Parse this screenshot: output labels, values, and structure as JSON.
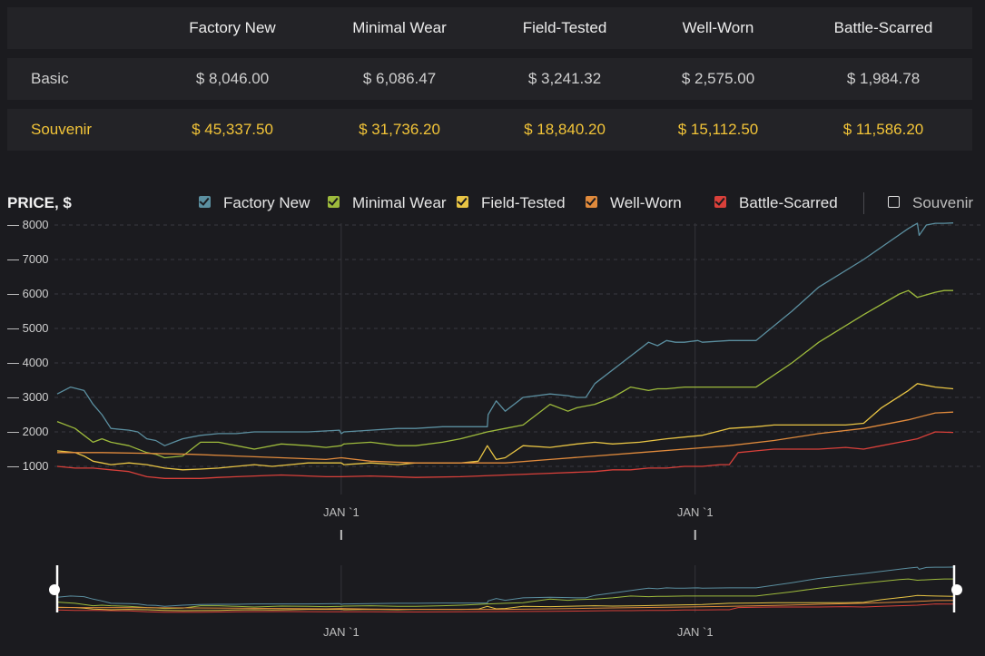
{
  "table": {
    "columns": [
      "",
      "Factory New",
      "Minimal Wear",
      "Field-Tested",
      "Well-Worn",
      "Battle-Scarred"
    ],
    "rows": [
      {
        "name": "Basic",
        "values": [
          "$ 8,046.00",
          "$ 6,086.47",
          "$ 3,241.32",
          "$ 2,575.00",
          "$ 1,984.78"
        ]
      },
      {
        "name": "Souvenir",
        "values": [
          "$ 45,337.50",
          "$ 31,736.20",
          "$ 18,840.20",
          "$ 15,112.50",
          "$ 11,586.20"
        ]
      }
    ]
  },
  "colors": {
    "factory_new": "#5b8fa0",
    "minimal_wear": "#9dba3c",
    "field_tested": "#e8c444",
    "well_worn": "#e08a3c",
    "battle_scarred": "#d9403a",
    "souvenir_text": "#f2c438"
  },
  "legend": {
    "items": [
      {
        "label": "Factory New",
        "checked": true
      },
      {
        "label": "Minimal Wear",
        "checked": true
      },
      {
        "label": "Field-Tested",
        "checked": true
      },
      {
        "label": "Well-Worn",
        "checked": true
      },
      {
        "label": "Battle-Scarred",
        "checked": true
      },
      {
        "label": "Souvenir",
        "checked": false
      }
    ]
  },
  "chart_data": {
    "type": "line",
    "ylabel": "PRICE, $",
    "ylim": [
      0,
      8000
    ],
    "yticks": [
      1000,
      2000,
      3000,
      4000,
      5000,
      6000,
      7000,
      8000
    ],
    "ytick_labels": [
      "— 1000",
      "— 2000",
      "— 3000",
      "— 4000",
      "— 5000",
      "— 6000",
      "— 7000",
      "— 8000"
    ],
    "xlim": [
      0,
      100
    ],
    "xtick_positions": [
      31.7,
      71.2
    ],
    "xtick_labels": [
      "JAN `1",
      "JAN `1"
    ],
    "grid": true,
    "legend_position": "top",
    "series": [
      {
        "name": "Factory New",
        "x": [
          0,
          1.5,
          3,
          4,
          5,
          6,
          8,
          9,
          10,
          11,
          12,
          13,
          14,
          15,
          16,
          18,
          20,
          22,
          25,
          28,
          31.5,
          31.7,
          32,
          35,
          38,
          40,
          43,
          45,
          46,
          48,
          48.1,
          49,
          50,
          52,
          55,
          57,
          58,
          59,
          60,
          61,
          63,
          64,
          65,
          66,
          67,
          68,
          69,
          70,
          71.5,
          72,
          75,
          78,
          82,
          85,
          90,
          95,
          96,
          96.2,
          97,
          98,
          99,
          100
        ],
        "y": [
          3100,
          3300,
          3200,
          2800,
          2500,
          2100,
          2050,
          2000,
          1800,
          1750,
          1600,
          1700,
          1800,
          1850,
          1900,
          1950,
          1950,
          2000,
          2000,
          2000,
          2050,
          1950,
          2000,
          2050,
          2100,
          2100,
          2150,
          2150,
          2150,
          2150,
          2500,
          2900,
          2600,
          3000,
          3100,
          3050,
          3000,
          3000,
          3400,
          3600,
          4000,
          4200,
          4400,
          4600,
          4500,
          4650,
          4600,
          4600,
          4650,
          4600,
          4650,
          4650,
          5500,
          6200,
          7000,
          7900,
          8050,
          7700,
          8000,
          8050,
          8050,
          8060
        ]
      },
      {
        "name": "Minimal Wear",
        "x": [
          0,
          2,
          3,
          4,
          5,
          6,
          8,
          10,
          11,
          12,
          14,
          16,
          18,
          20,
          22,
          25,
          28,
          30,
          31.7,
          32,
          35,
          38,
          40,
          43,
          45,
          48,
          50,
          52,
          55,
          57,
          58,
          60,
          62,
          64,
          66,
          67,
          68,
          70,
          72,
          75,
          78,
          82,
          85,
          90,
          94,
          95,
          96,
          98,
          99,
          100
        ],
        "y": [
          2300,
          2100,
          1900,
          1700,
          1800,
          1700,
          1600,
          1400,
          1350,
          1250,
          1300,
          1700,
          1700,
          1600,
          1500,
          1650,
          1600,
          1550,
          1600,
          1650,
          1700,
          1600,
          1600,
          1700,
          1800,
          2000,
          2100,
          2200,
          2800,
          2600,
          2700,
          2800,
          3000,
          3300,
          3200,
          3250,
          3250,
          3300,
          3300,
          3300,
          3300,
          4000,
          4600,
          5400,
          6000,
          6100,
          5900,
          6050,
          6100,
          6100
        ]
      },
      {
        "name": "Field-Tested",
        "x": [
          0,
          2,
          3,
          4,
          5,
          6,
          8,
          10,
          12,
          14,
          16,
          18,
          20,
          22,
          24,
          26,
          28,
          30,
          31.7,
          32,
          35,
          38,
          40,
          43,
          45,
          47,
          48,
          49,
          50,
          52,
          55,
          58,
          60,
          62,
          65,
          68,
          70,
          72,
          75,
          78,
          80,
          82,
          85,
          88,
          90,
          92,
          95,
          96,
          97,
          98,
          100
        ],
        "y": [
          1450,
          1400,
          1300,
          1150,
          1100,
          1050,
          1100,
          1050,
          950,
          900,
          920,
          950,
          1000,
          1050,
          1000,
          1050,
          1100,
          1100,
          1100,
          1050,
          1100,
          1050,
          1100,
          1100,
          1100,
          1150,
          1600,
          1200,
          1250,
          1600,
          1550,
          1650,
          1700,
          1650,
          1700,
          1800,
          1850,
          1900,
          2100,
          2150,
          2200,
          2200,
          2200,
          2200,
          2250,
          2700,
          3200,
          3400,
          3350,
          3300,
          3250
        ]
      },
      {
        "name": "Well-Worn",
        "x": [
          0,
          5,
          10,
          15,
          20,
          25,
          30,
          31.7,
          35,
          40,
          45,
          50,
          55,
          60,
          65,
          70,
          75,
          80,
          85,
          90,
          95,
          98,
          100
        ],
        "y": [
          1400,
          1400,
          1380,
          1350,
          1300,
          1250,
          1200,
          1250,
          1150,
          1100,
          1100,
          1100,
          1200,
          1300,
          1400,
          1500,
          1600,
          1750,
          1950,
          2100,
          2350,
          2550,
          2575
        ]
      },
      {
        "name": "Battle-Scarred",
        "x": [
          0,
          2,
          4,
          6,
          8,
          10,
          12,
          14,
          16,
          18,
          20,
          25,
          30,
          31.7,
          35,
          40,
          45,
          50,
          55,
          60,
          62,
          64,
          66,
          68,
          70,
          72,
          74,
          75,
          76,
          78,
          80,
          85,
          88,
          90,
          92,
          94,
          96,
          98,
          100
        ],
        "y": [
          1000,
          950,
          950,
          900,
          850,
          700,
          650,
          650,
          650,
          680,
          700,
          750,
          700,
          700,
          720,
          680,
          700,
          750,
          800,
          850,
          900,
          900,
          950,
          950,
          1000,
          1000,
          1050,
          1050,
          1400,
          1450,
          1500,
          1500,
          1550,
          1500,
          1600,
          1700,
          1800,
          2000,
          1985
        ]
      }
    ]
  }
}
